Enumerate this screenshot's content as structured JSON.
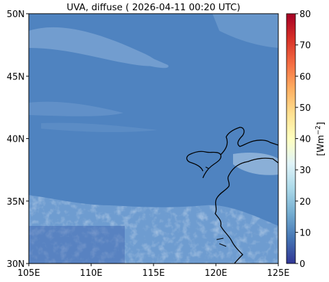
{
  "figure": {
    "title": "UVA, diffuse ( 2026-04-11 00:20 UTC)",
    "colorbar": {
      "label": "[Wm$^{-2}$]",
      "label_main": "[Wm",
      "label_sup": "−2",
      "label_end": "]",
      "min": 0,
      "max": 80,
      "ticks": [
        "0",
        "10",
        "20",
        "30",
        "40",
        "50",
        "60",
        "70",
        "80"
      ],
      "colormap": "RdYlBu_r"
    }
  },
  "map": {
    "lon_range": [
      105,
      125
    ],
    "lat_range": [
      30,
      50
    ],
    "lon_ticks": [
      "105E",
      "110E",
      "115E",
      "120E",
      "125E"
    ],
    "lat_ticks": [
      "30N",
      "35N",
      "40N",
      "45N",
      "50N"
    ],
    "base_color": "#4f83c0",
    "coastline_color": "#000000"
  }
}
